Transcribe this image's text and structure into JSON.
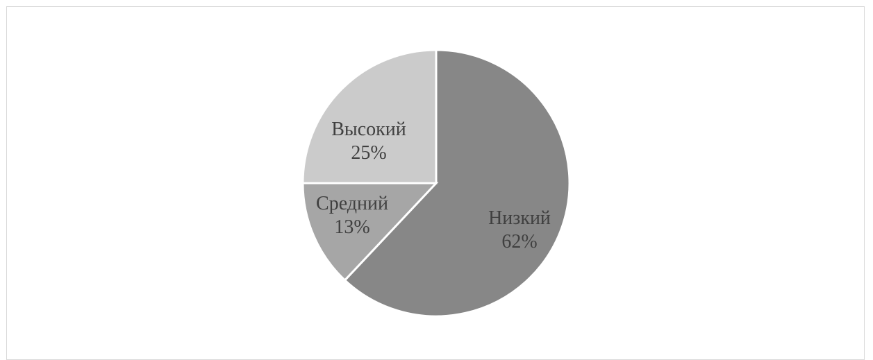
{
  "chart_data": {
    "type": "pie",
    "slices": [
      {
        "label": "Низкий",
        "value": 62,
        "value_label": "62%",
        "color": "#878787",
        "text_color": "#404040"
      },
      {
        "label": "Средний",
        "value": 13,
        "value_label": "13%",
        "color": "#a6a6a6",
        "text_color": "#404040"
      },
      {
        "label": "Высокий",
        "value": 25,
        "value_label": "25%",
        "color": "#cbcbcb",
        "text_color": "#404040"
      }
    ],
    "start_angle_deg": 0,
    "direction": "clockwise",
    "legend": "none"
  }
}
